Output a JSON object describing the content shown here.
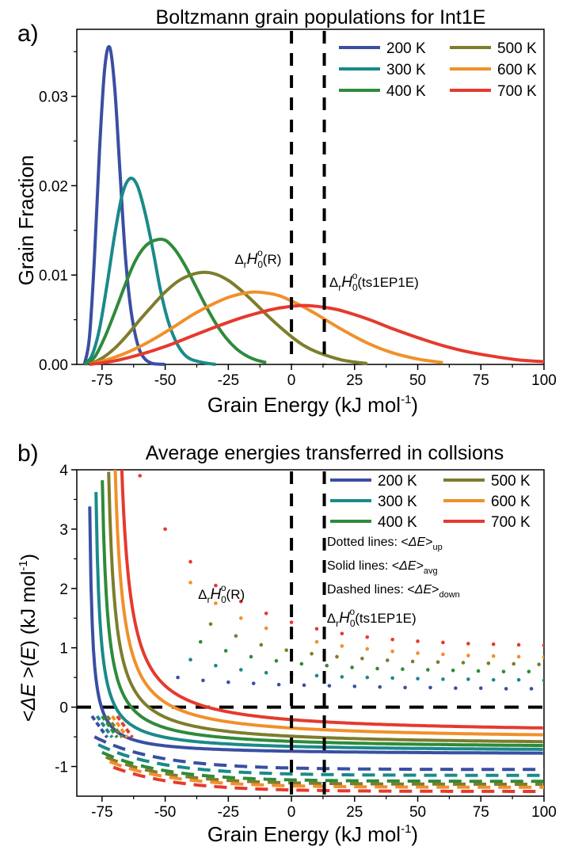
{
  "chart_data": [
    {
      "panel_label": "a)",
      "type": "line",
      "title": "Boltzmann grain populations for Int1E",
      "xlabel": "Grain Energy (kJ mol",
      "xlabel_sup": "-1",
      "xlabel_end": ")",
      "ylabel": "Grain Fraction",
      "xlim": [
        -85,
        100
      ],
      "ylim": [
        0,
        0.0375
      ],
      "xticks": [
        -75,
        -50,
        -25,
        0,
        25,
        50,
        75,
        100
      ],
      "xtick_labels": [
        "-75",
        "-50",
        "-25",
        "0",
        "25",
        "50",
        "75",
        "100"
      ],
      "yticks": [
        0,
        0.01,
        0.02,
        0.03
      ],
      "ytick_labels": [
        "0.00",
        "0.01",
        "0.02",
        "0.03"
      ],
      "series": [
        {
          "name": "200 K",
          "color": "#3a4ea3",
          "x": [
            -82,
            -80,
            -78,
            -76,
            -74,
            -72,
            -70,
            -68,
            -66,
            -64,
            -62,
            -60,
            -58,
            -56,
            -54,
            -50
          ],
          "y": [
            0,
            0.003,
            0.012,
            0.024,
            0.033,
            0.0355,
            0.031,
            0.022,
            0.013,
            0.007,
            0.0035,
            0.0015,
            0.0006,
            0.0002,
            5e-05,
            0
          ]
        },
        {
          "name": "300 K",
          "color": "#1a8a8a",
          "x": [
            -82,
            -79,
            -76,
            -73,
            -70,
            -67,
            -64,
            -61,
            -58,
            -55,
            -52,
            -49,
            -46,
            -43,
            -40,
            -35,
            -30
          ],
          "y": [
            0,
            0.001,
            0.004,
            0.009,
            0.0145,
            0.019,
            0.0208,
            0.02,
            0.017,
            0.013,
            0.0085,
            0.005,
            0.0027,
            0.0013,
            0.0006,
            0.0002,
            0
          ]
        },
        {
          "name": "400 K",
          "color": "#2e8b3a",
          "x": [
            -82,
            -78,
            -74,
            -70,
            -66,
            -62,
            -58,
            -54,
            -50,
            -46,
            -42,
            -38,
            -34,
            -30,
            -26,
            -22,
            -18,
            -14,
            -10
          ],
          "y": [
            0,
            0.0008,
            0.003,
            0.0058,
            0.0088,
            0.0115,
            0.0132,
            0.0139,
            0.0139,
            0.0128,
            0.011,
            0.0088,
            0.0066,
            0.0046,
            0.003,
            0.0018,
            0.001,
            0.0005,
            0.0002
          ]
        },
        {
          "name": "500 K",
          "color": "#7d7d2c",
          "x": [
            -80,
            -75,
            -70,
            -65,
            -60,
            -55,
            -50,
            -45,
            -40,
            -35,
            -30,
            -25,
            -20,
            -15,
            -10,
            -5,
            0,
            5,
            10,
            20,
            30
          ],
          "y": [
            0,
            0.0007,
            0.0018,
            0.0033,
            0.005,
            0.0066,
            0.0081,
            0.0093,
            0.01,
            0.0103,
            0.0101,
            0.0094,
            0.0083,
            0.007,
            0.0056,
            0.0043,
            0.0031,
            0.0021,
            0.0014,
            0.0005,
            0.0001
          ]
        },
        {
          "name": "600 K",
          "color": "#f0902a",
          "x": [
            -80,
            -70,
            -60,
            -50,
            -40,
            -35,
            -30,
            -25,
            -20,
            -15,
            -10,
            -5,
            0,
            5,
            10,
            20,
            30,
            40,
            50,
            60
          ],
          "y": [
            0,
            0.0008,
            0.002,
            0.0036,
            0.0054,
            0.0062,
            0.0069,
            0.0075,
            0.0079,
            0.0081,
            0.008,
            0.0077,
            0.0071,
            0.0064,
            0.0056,
            0.0039,
            0.0024,
            0.0013,
            0.0006,
            0.0002
          ]
        },
        {
          "name": "700 K",
          "color": "#e53a2e",
          "x": [
            -80,
            -70,
            -60,
            -50,
            -40,
            -30,
            -20,
            -10,
            -5,
            0,
            5,
            10,
            15,
            20,
            30,
            40,
            50,
            60,
            70,
            80,
            90,
            100
          ],
          "y": [
            0,
            0.0004,
            0.0011,
            0.002,
            0.0031,
            0.0042,
            0.0052,
            0.006,
            0.0063,
            0.0065,
            0.0066,
            0.0065,
            0.0063,
            0.006,
            0.0051,
            0.004,
            0.003,
            0.0021,
            0.0014,
            0.0009,
            0.0005,
            0.0003
          ]
        }
      ],
      "reference_lines": [
        {
          "x": 0,
          "label_main": "Δ",
          "label_sub": "r",
          "label_italic": "H",
          "label_sub2": "0",
          "label_sup": "o",
          "label_tail": "(R)"
        },
        {
          "x": 13,
          "label_main": "Δ",
          "label_sub": "r",
          "label_italic": "H",
          "label_sub2": "0",
          "label_sup": "o",
          "label_tail": "(ts1EP1E)"
        }
      ],
      "legend_position": "top-right"
    },
    {
      "panel_label": "b)",
      "type": "line",
      "title": "Average energies transferred in collsions",
      "xlabel": "Grain Energy (kJ mol",
      "xlabel_sup": "-1",
      "xlabel_end": ")",
      "ylabel_pre": "<",
      "ylabel_delta": "ΔE",
      "ylabel_mid": " >(",
      "ylabel_e": "E",
      "ylabel_post": ")  (kJ mol",
      "ylabel_sup": "-1",
      "ylabel_end": ")",
      "xlim": [
        -85,
        100
      ],
      "ylim": [
        -1.5,
        4
      ],
      "xticks": [
        -75,
        -50,
        -25,
        0,
        25,
        50,
        75,
        100
      ],
      "xtick_labels": [
        "-75",
        "-50",
        "-25",
        "0",
        "25",
        "50",
        "75",
        "100"
      ],
      "yticks": [
        -1,
        0,
        1,
        2,
        3,
        4
      ],
      "ytick_labels": [
        "-1",
        "0",
        "1",
        "2",
        "3",
        "4"
      ],
      "series": [
        {
          "name": "200 K",
          "color": "#3a4ea3",
          "avg_x0": -81,
          "avg_a": 4.6,
          "avg_inf": -0.8,
          "up_x": [
            -45,
            -35,
            -25,
            -15,
            -5,
            5,
            15,
            25,
            35,
            45,
            55,
            65,
            75,
            85,
            95
          ],
          "up_y": [
            0.5,
            0.45,
            0.42,
            0.4,
            0.38,
            0.37,
            0.36,
            0.35,
            0.34,
            0.33,
            0.33,
            0.32,
            0.32,
            0.31,
            0.31
          ],
          "down_y": -1.05
        },
        {
          "name": "300 K",
          "color": "#1a8a8a",
          "avg_x0": -79,
          "avg_a": 7.0,
          "avg_inf": -0.75,
          "up_x": [
            -40,
            -30,
            -20,
            -10,
            0,
            10,
            20,
            30,
            40,
            50,
            60,
            70,
            80,
            90,
            100
          ],
          "up_y": [
            0.8,
            0.7,
            0.63,
            0.58,
            0.55,
            0.53,
            0.51,
            0.5,
            0.49,
            0.48,
            0.47,
            0.47,
            0.46,
            0.46,
            0.45
          ],
          "down_y": -1.15
        },
        {
          "name": "400 K",
          "color": "#2e8b3a",
          "avg_x0": -77,
          "avg_a": 9.5,
          "avg_inf": -0.7,
          "up_x": [
            -36,
            -26,
            -16,
            -6,
            4,
            14,
            24,
            34,
            44,
            54,
            64,
            74,
            84,
            94
          ],
          "up_y": [
            1.1,
            0.95,
            0.85,
            0.78,
            0.73,
            0.7,
            0.67,
            0.65,
            0.64,
            0.63,
            0.62,
            0.61,
            0.6,
            0.6
          ],
          "down_y": -1.25
        },
        {
          "name": "500 K",
          "color": "#7d7d2c",
          "avg_x0": -75,
          "avg_a": 12.0,
          "avg_inf": -0.65,
          "up_x": [
            -32,
            -22,
            -12,
            -2,
            8,
            18,
            28,
            38,
            48,
            58,
            68,
            78,
            88,
            98
          ],
          "up_y": [
            1.4,
            1.2,
            1.05,
            0.96,
            0.9,
            0.85,
            0.82,
            0.79,
            0.77,
            0.76,
            0.75,
            0.74,
            0.73,
            0.72
          ],
          "down_y": -1.3
        },
        {
          "name": "600 K",
          "color": "#f0902a",
          "avg_x0": -73,
          "avg_a": 14.5,
          "avg_inf": -0.55,
          "up_x": [
            -40,
            -30,
            -20,
            -10,
            0,
            10,
            20,
            30,
            40,
            50,
            60,
            70,
            80,
            90,
            100
          ],
          "up_y": [
            2.1,
            1.75,
            1.5,
            1.33,
            1.2,
            1.1,
            1.03,
            0.98,
            0.94,
            0.91,
            0.89,
            0.87,
            0.86,
            0.85,
            0.84
          ],
          "down_y": -1.35
        },
        {
          "name": "700 K",
          "color": "#e53a2e",
          "avg_x0": -71,
          "avg_a": 17.0,
          "avg_inf": -0.45,
          "up_x": [
            -60,
            -50,
            -40,
            -30,
            -20,
            -10,
            0,
            10,
            20,
            30,
            40,
            50,
            60,
            70,
            80,
            90,
            100
          ],
          "up_y": [
            3.9,
            3.0,
            2.45,
            2.05,
            1.78,
            1.58,
            1.43,
            1.32,
            1.24,
            1.18,
            1.14,
            1.11,
            1.09,
            1.07,
            1.06,
            1.05,
            1.04
          ],
          "down_y": -1.42
        }
      ],
      "zero_line": 0,
      "reference_lines": [
        {
          "x": 0,
          "label_main": "Δ",
          "label_sub": "r",
          "label_italic": "H",
          "label_sub2": "0",
          "label_sup": "o",
          "label_tail": "(R)"
        },
        {
          "x": 13,
          "label_main": "Δ",
          "label_sub": "r",
          "label_italic": "H",
          "label_sub2": "0",
          "label_sup": "o",
          "label_tail": "(ts1EP1E)"
        }
      ],
      "notes": [
        {
          "pre": "Dotted lines: <",
          "italic": "ΔE",
          "post": ">",
          "sub": "up"
        },
        {
          "pre": "Solid lines: <",
          "italic": "ΔE",
          "post": ">",
          "sub": "avg"
        },
        {
          "pre": "Dashed lines: <",
          "italic": "ΔE",
          "post": ">",
          "sub": "down"
        }
      ],
      "legend_position": "top-right"
    }
  ]
}
